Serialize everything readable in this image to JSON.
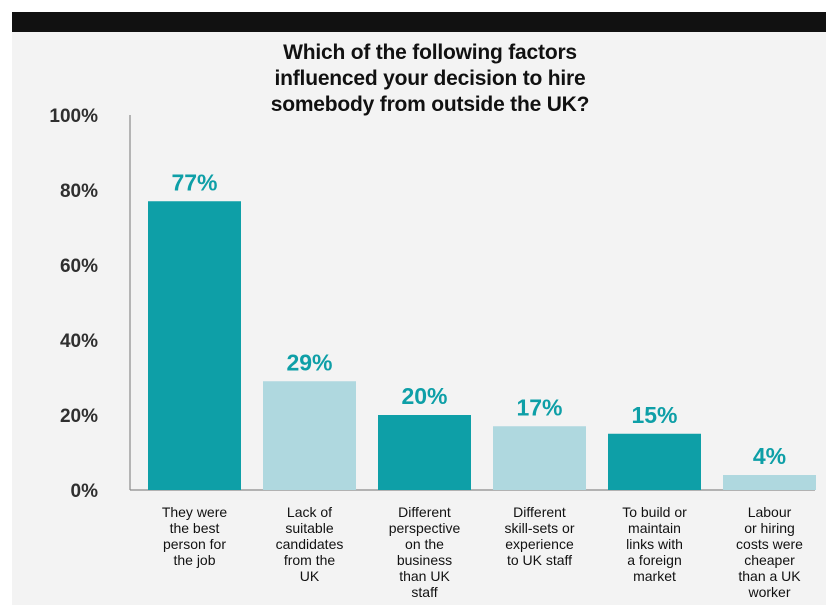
{
  "chart_data": {
    "type": "bar",
    "title": "Which of the following factors influenced your decision to hire somebody from outside the UK?",
    "title_lines": [
      "Which of the following factors",
      "influenced your decision to hire",
      "somebody from outside the UK?"
    ],
    "categories": [
      "They were the best person for the job",
      "Lack of suitable candidates from the UK",
      "Different perspective on the business than UK staff",
      "Different skill-sets or experience to UK staff",
      "To build or maintain links with a foreign market",
      "Labour or hiring costs were cheaper than a UK worker"
    ],
    "category_lines": [
      [
        "They were",
        "the best",
        "person for",
        "the job"
      ],
      [
        "Lack of",
        "suitable",
        "candidates",
        "from the",
        "UK"
      ],
      [
        "Different",
        "perspective",
        "on the",
        "business",
        "than UK",
        "staff"
      ],
      [
        "Different",
        "skill-sets or",
        "experience",
        "to UK staff"
      ],
      [
        "To build or",
        "maintain",
        "links with",
        "a foreign",
        "market"
      ],
      [
        "Labour",
        "or hiring",
        "costs were",
        "cheaper",
        "than a UK",
        "worker"
      ]
    ],
    "values": [
      77,
      29,
      20,
      17,
      15,
      4
    ],
    "value_labels": [
      "77%",
      "29%",
      "20%",
      "17%",
      "15%",
      "4%"
    ],
    "ylim": [
      0,
      100
    ],
    "yticks": [
      0,
      20,
      40,
      60,
      80,
      100
    ],
    "ytick_labels": [
      "0%",
      "20%",
      "40%",
      "60%",
      "80%",
      "100%"
    ],
    "grid": false,
    "legend": "none",
    "colors": {
      "dark_bar": "#0e9fa7",
      "light_bar": "#afd8df",
      "value_label": "#0e9fa7",
      "axis": "#8a8a8a",
      "header_bar": "#111111",
      "background": "#f3f3f3"
    }
  }
}
